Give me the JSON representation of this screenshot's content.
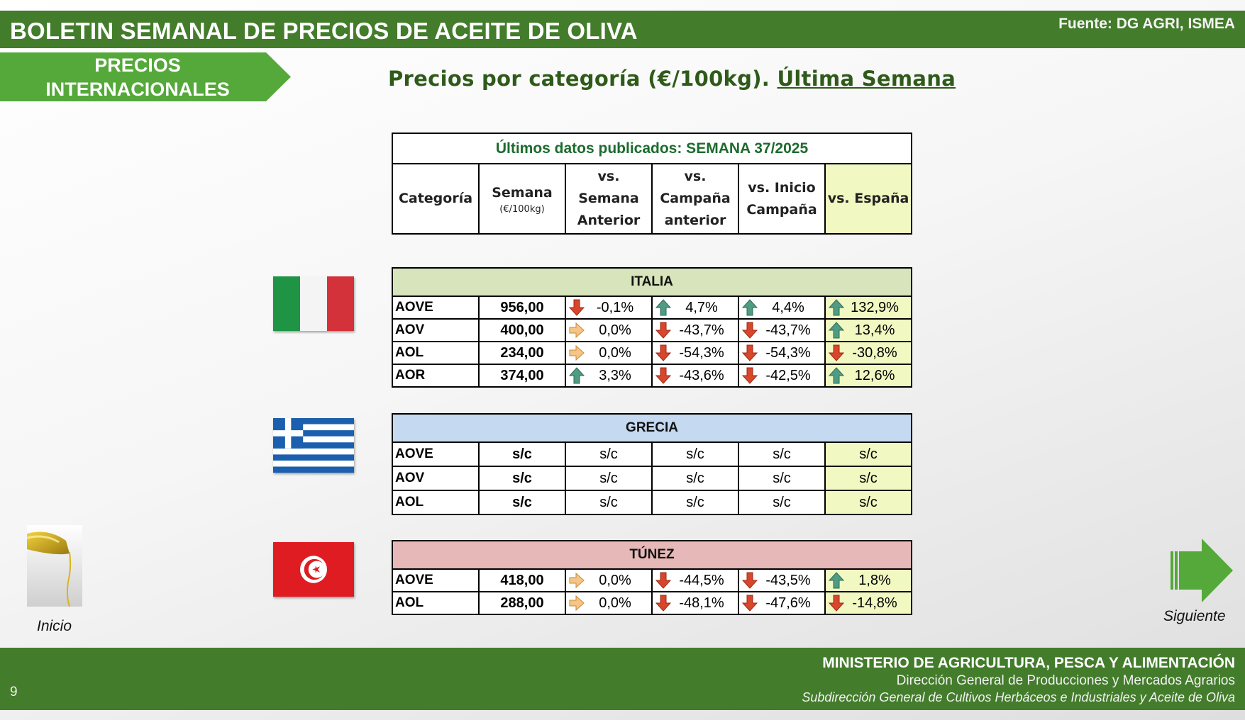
{
  "header": {
    "title": "BOLETIN SEMANAL DE PRECIOS DE ACEITE DE OLIVA",
    "source": "Fuente: DG AGRI, ISMEA"
  },
  "section_tab": {
    "line1": "PRECIOS",
    "line2": "INTERNACIONALES"
  },
  "subtitle": {
    "main": "Precios por categoría (€/100kg). ",
    "underlined": "Última Semana"
  },
  "table_header": {
    "banner": "Últimos datos publicados: SEMANA 37/2025",
    "columns": {
      "categoria": "Categoría",
      "semana": "Semana",
      "semana_unit": "(€/100kg)",
      "vs_semana_1": "vs. Semana",
      "vs_semana_2": "Anterior",
      "vs_campana_1": "vs.",
      "vs_campana_2": "Campaña",
      "vs_campana_3": "anterior",
      "vs_inicio_1": "vs. Inicio",
      "vs_inicio_2": "Campaña",
      "vs_espana": "vs. España"
    }
  },
  "italia": {
    "name": "ITALIA",
    "rows": [
      {
        "cat": "AOVE",
        "semana": "956,00",
        "vs_sem": "-0,1%",
        "vs_sem_dir": "down",
        "vs_camp": "4,7%",
        "vs_camp_dir": "up",
        "vs_ini": "4,4%",
        "vs_ini_dir": "up",
        "vs_esp": "132,9%",
        "vs_esp_dir": "up"
      },
      {
        "cat": "AOV",
        "semana": "400,00",
        "vs_sem": "0,0%",
        "vs_sem_dir": "flat",
        "vs_camp": "-43,7%",
        "vs_camp_dir": "down",
        "vs_ini": "-43,7%",
        "vs_ini_dir": "down",
        "vs_esp": "13,4%",
        "vs_esp_dir": "up"
      },
      {
        "cat": "AOL",
        "semana": "234,00",
        "vs_sem": "0,0%",
        "vs_sem_dir": "flat",
        "vs_camp": "-54,3%",
        "vs_camp_dir": "down",
        "vs_ini": "-54,3%",
        "vs_ini_dir": "down",
        "vs_esp": "-30,8%",
        "vs_esp_dir": "down"
      },
      {
        "cat": "AOR",
        "semana": "374,00",
        "vs_sem": "3,3%",
        "vs_sem_dir": "up",
        "vs_camp": "-43,6%",
        "vs_camp_dir": "down",
        "vs_ini": "-42,5%",
        "vs_ini_dir": "down",
        "vs_esp": "12,6%",
        "vs_esp_dir": "up"
      }
    ]
  },
  "grecia": {
    "name": "GRECIA",
    "rows": [
      {
        "cat": "AOVE",
        "semana": "s/c",
        "vs_sem": "s/c",
        "vs_camp": "s/c",
        "vs_ini": "s/c",
        "vs_esp": "s/c"
      },
      {
        "cat": "AOV",
        "semana": "s/c",
        "vs_sem": "s/c",
        "vs_camp": "s/c",
        "vs_ini": "s/c",
        "vs_esp": "s/c"
      },
      {
        "cat": "AOL",
        "semana": "s/c",
        "vs_sem": "s/c",
        "vs_camp": "s/c",
        "vs_ini": "s/c",
        "vs_esp": "s/c"
      }
    ]
  },
  "tunez": {
    "name": "TÚNEZ",
    "rows": [
      {
        "cat": "AOVE",
        "semana": "418,00",
        "vs_sem": "0,0%",
        "vs_sem_dir": "flat",
        "vs_camp": "-44,5%",
        "vs_camp_dir": "down",
        "vs_ini": "-43,5%",
        "vs_ini_dir": "down",
        "vs_esp": "1,8%",
        "vs_esp_dir": "up"
      },
      {
        "cat": "AOL",
        "semana": "288,00",
        "vs_sem": "0,0%",
        "vs_sem_dir": "flat",
        "vs_camp": "-48,1%",
        "vs_camp_dir": "down",
        "vs_ini": "-47,6%",
        "vs_ini_dir": "down",
        "vs_esp": "-14,8%",
        "vs_esp_dir": "down"
      }
    ]
  },
  "nav": {
    "inicio": "Inicio",
    "siguiente": "Siguiente"
  },
  "footer": {
    "page": "9",
    "ministry": "MINISTERIO DE AGRICULTURA, PESCA Y ALIMENTACIÓN",
    "dg": "Dirección General de Producciones y Mercados Agrarios",
    "sub": "Subdirección General de Cultivos Herbáceos e Industriales y Aceite de Oliva"
  },
  "colors": {
    "brand_green": "#437c2b",
    "tab_green": "#55a83a",
    "italia": "#d7e4bc",
    "grecia": "#c5d9f1",
    "tunez": "#e6b9b8",
    "espana_col": "#f1f8c1",
    "arrow_up": "#4f9b84",
    "arrow_down": "#d9462c",
    "arrow_flat": "#f0b46a"
  },
  "icons": {
    "up": "arrow-up-icon",
    "down": "arrow-down-icon",
    "flat": "arrow-right-icon",
    "oil": "olive-oil-pour-icon",
    "next": "next-arrow-icon"
  }
}
